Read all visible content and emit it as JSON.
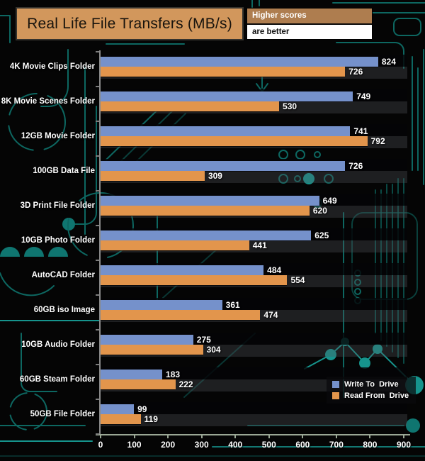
{
  "title_box": {
    "text": "Real Life File Transfers (MB/s)",
    "bg": "#d2975c"
  },
  "note_box": {
    "line1": "Higher scores",
    "line2": "are better",
    "line1_bg": "#ae7d4f",
    "line2_bg": "#ffffff"
  },
  "legend": {
    "position": "bottom-right",
    "items": [
      {
        "label": "Write To  Drive",
        "color": "#7591cb"
      },
      {
        "label": "Read From  Drive",
        "color": "#e2954c"
      }
    ]
  },
  "chart_data": {
    "type": "bar",
    "orientation": "horizontal",
    "title": "Real Life File Transfers (MB/s)",
    "categories": [
      "4K Movie Clips Folder",
      "8K Movie Scenes Folder",
      "12GB Movie Folder",
      "100GB Data File",
      "3D Print File Folder",
      "10GB Photo Folder",
      "AutoCAD Folder",
      "60GB iso Image",
      "10GB Audio Folder",
      "60GB Steam Folder",
      "50GB File Folder"
    ],
    "series": [
      {
        "name": "Write To  Drive",
        "color": "#7591cb",
        "values": [
          824,
          749,
          741,
          726,
          649,
          625,
          484,
          361,
          275,
          183,
          99
        ]
      },
      {
        "name": "Read From  Drive",
        "color": "#e2954c",
        "values": [
          726,
          530,
          792,
          309,
          620,
          441,
          554,
          474,
          304,
          222,
          119
        ]
      }
    ],
    "xlim": [
      0,
      900
    ],
    "xticks": [
      0,
      100,
      200,
      300,
      400,
      500,
      600,
      700,
      800,
      900
    ],
    "value_labels": true,
    "grid": false,
    "legend_position": "bottom-right"
  }
}
